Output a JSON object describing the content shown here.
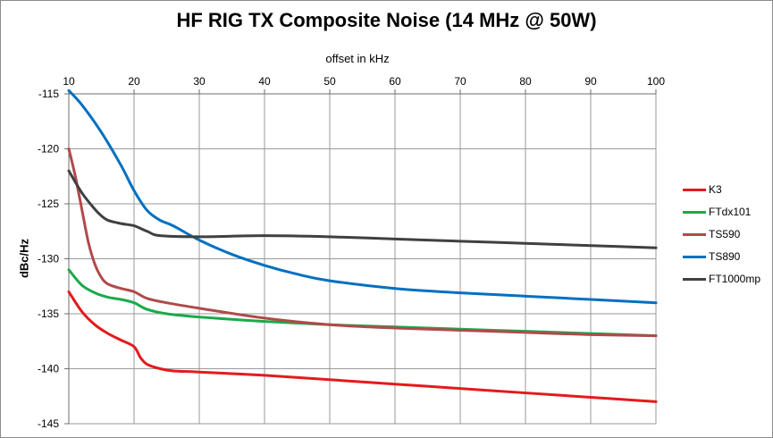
{
  "chart_data": {
    "type": "line",
    "title": "HF RIG TX Composite Noise (14 MHz @ 50W)",
    "xlabel": "offset in kHz",
    "ylabel": "dBc/Hz",
    "xlim": [
      10,
      100
    ],
    "ylim": [
      -145,
      -115
    ],
    "x_ticks": [
      10,
      20,
      30,
      40,
      50,
      60,
      70,
      80,
      90,
      100
    ],
    "y_ticks": [
      -115,
      -120,
      -125,
      -130,
      -135,
      -140,
      -145
    ],
    "x_tick_labels": [
      "10",
      "20",
      "30",
      "40",
      "50",
      "60",
      "70",
      "80",
      "90",
      "100"
    ],
    "y_tick_labels": [
      "-115",
      "-120",
      "-125",
      "-130",
      "-135",
      "-140",
      "-145"
    ],
    "grid": true,
    "x_axis_position": "top",
    "legend_position": "right",
    "series": [
      {
        "name": "K3",
        "color": "#e41a1c",
        "points": [
          [
            10,
            -133
          ],
          [
            12,
            -134.8
          ],
          [
            14,
            -136
          ],
          [
            16,
            -136.8
          ],
          [
            18,
            -137.4
          ],
          [
            20,
            -138
          ],
          [
            21,
            -139
          ],
          [
            22,
            -139.6
          ],
          [
            24,
            -140
          ],
          [
            26,
            -140.2
          ],
          [
            30,
            -140.3
          ],
          [
            40,
            -140.6
          ],
          [
            50,
            -141
          ],
          [
            60,
            -141.4
          ],
          [
            70,
            -141.8
          ],
          [
            80,
            -142.2
          ],
          [
            90,
            -142.6
          ],
          [
            100,
            -143
          ]
        ]
      },
      {
        "name": "FTdx101",
        "color": "#1aaa4a",
        "points": [
          [
            10,
            -131
          ],
          [
            12,
            -132.4
          ],
          [
            14,
            -133.1
          ],
          [
            16,
            -133.5
          ],
          [
            18,
            -133.7
          ],
          [
            20,
            -134
          ],
          [
            22,
            -134.6
          ],
          [
            25,
            -135
          ],
          [
            30,
            -135.3
          ],
          [
            40,
            -135.7
          ],
          [
            50,
            -136
          ],
          [
            60,
            -136.2
          ],
          [
            70,
            -136.4
          ],
          [
            80,
            -136.6
          ],
          [
            90,
            -136.8
          ],
          [
            100,
            -137
          ]
        ]
      },
      {
        "name": "TS590",
        "color": "#b04a4a",
        "points": [
          [
            10,
            -120
          ],
          [
            11,
            -122.5
          ],
          [
            12,
            -125.5
          ],
          [
            13,
            -128.5
          ],
          [
            14,
            -130.5
          ],
          [
            15,
            -131.7
          ],
          [
            16,
            -132.3
          ],
          [
            18,
            -132.7
          ],
          [
            20,
            -133
          ],
          [
            22,
            -133.6
          ],
          [
            25,
            -134
          ],
          [
            30,
            -134.5
          ],
          [
            40,
            -135.4
          ],
          [
            50,
            -136
          ],
          [
            60,
            -136.3
          ],
          [
            70,
            -136.5
          ],
          [
            80,
            -136.7
          ],
          [
            90,
            -136.9
          ],
          [
            100,
            -137
          ]
        ]
      },
      {
        "name": "TS890",
        "color": "#0070c0",
        "points": [
          [
            10,
            -114.7
          ],
          [
            12,
            -116
          ],
          [
            15,
            -118.5
          ],
          [
            18,
            -121.5
          ],
          [
            20,
            -123.8
          ],
          [
            22,
            -125.6
          ],
          [
            24,
            -126.5
          ],
          [
            26,
            -127
          ],
          [
            30,
            -128.3
          ],
          [
            35,
            -129.6
          ],
          [
            40,
            -130.6
          ],
          [
            45,
            -131.4
          ],
          [
            50,
            -132
          ],
          [
            60,
            -132.7
          ],
          [
            70,
            -133.1
          ],
          [
            80,
            -133.4
          ],
          [
            90,
            -133.7
          ],
          [
            100,
            -134
          ]
        ]
      },
      {
        "name": "FT1000mp",
        "color": "#404040",
        "points": [
          [
            10,
            -122
          ],
          [
            12,
            -124
          ],
          [
            14,
            -125.5
          ],
          [
            15,
            -126.1
          ],
          [
            16,
            -126.5
          ],
          [
            18,
            -126.8
          ],
          [
            20,
            -127
          ],
          [
            22,
            -127.5
          ],
          [
            24,
            -127.9
          ],
          [
            30,
            -128
          ],
          [
            40,
            -127.9
          ],
          [
            50,
            -128
          ],
          [
            60,
            -128.2
          ],
          [
            70,
            -128.4
          ],
          [
            80,
            -128.6
          ],
          [
            90,
            -128.8
          ],
          [
            100,
            -129
          ]
        ]
      }
    ]
  }
}
